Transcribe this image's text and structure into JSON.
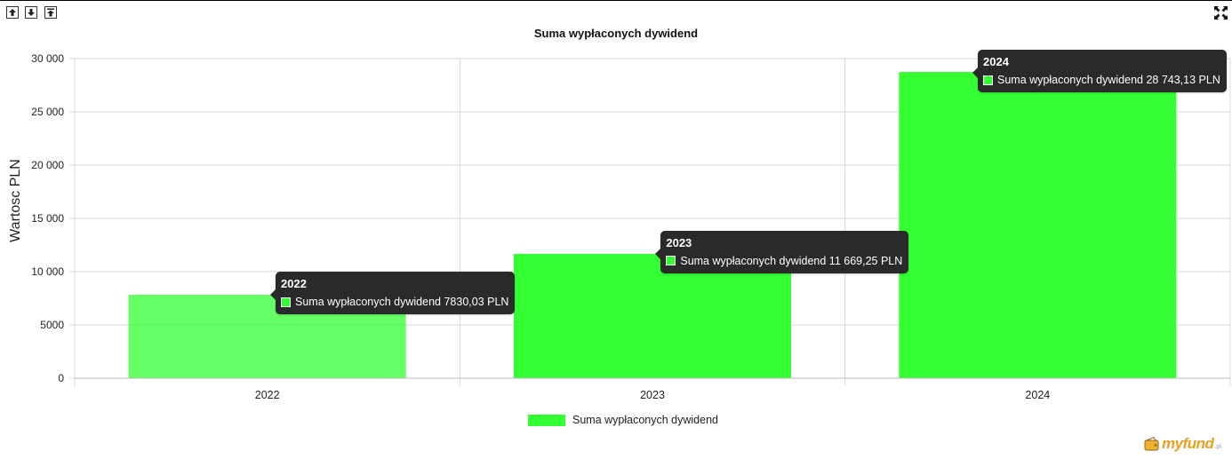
{
  "toolbar": {
    "up_icon": "arrow-up-icon",
    "down_icon": "arrow-down-icon",
    "top_icon": "arrow-top-icon",
    "expand_icon": "fullscreen-icon"
  },
  "chart_data": {
    "type": "bar",
    "title": "Suma wypłaconych dywidend",
    "ylabel": "Wartosc PLN",
    "xlabel": "",
    "categories": [
      "2022",
      "2023",
      "2024"
    ],
    "series": [
      {
        "name": "Suma wypłaconych dywidend",
        "values": [
          7830.03,
          11669.25,
          28743.13
        ],
        "color": "#33ff33"
      }
    ],
    "ylim": [
      0,
      30000
    ],
    "yticks": [
      {
        "value": 0,
        "label": "0"
      },
      {
        "value": 5000,
        "label": "5000"
      },
      {
        "value": 10000,
        "label": "10 000"
      },
      {
        "value": 15000,
        "label": "15 000"
      },
      {
        "value": 20000,
        "label": "20 000"
      },
      {
        "value": 25000,
        "label": "25 000"
      },
      {
        "value": 30000,
        "label": "30 000"
      }
    ],
    "grid": true,
    "legend_position": "bottom",
    "tooltips": [
      {
        "title": "2022",
        "label": "Suma wypłaconych dywidend 7830,03  PLN"
      },
      {
        "title": "2023",
        "label": "Suma wypłaconych dywidend 11 669,25  PLN"
      },
      {
        "title": "2024",
        "label": "Suma wypłaconych dywidend 28 743,13  PLN"
      }
    ]
  },
  "branding": {
    "logo_text": "myfund",
    "logo_tld": ".pl"
  }
}
